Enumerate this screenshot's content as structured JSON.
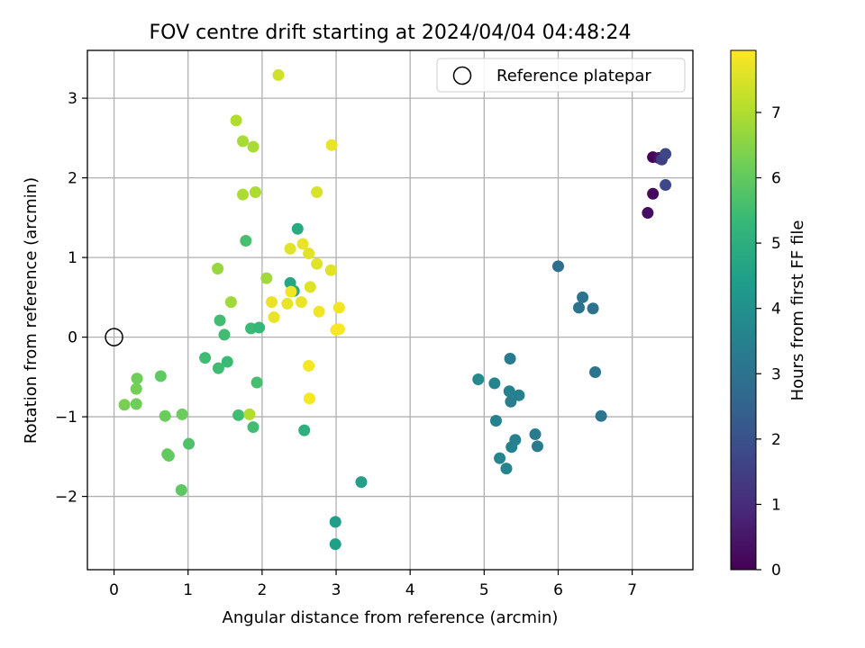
{
  "chart_data": {
    "type": "scatter",
    "title": "FOV centre drift starting at 2024/04/04 04:48:24",
    "xlabel": "Angular distance from reference (arcmin)",
    "ylabel": "Rotation from reference (arcmin)",
    "xlim": [
      -0.36,
      7.82
    ],
    "ylim": [
      -2.92,
      3.6
    ],
    "xticks": [
      "0",
      "1",
      "2",
      "3",
      "4",
      "5",
      "6",
      "7"
    ],
    "yticks": [
      "−2",
      "−1",
      "0",
      "1",
      "2",
      "3"
    ],
    "grid": true,
    "legend": {
      "location": "upper right",
      "label": "Reference platepar",
      "marker": "open-circle"
    },
    "reference_point": {
      "x": 0,
      "y": 0
    },
    "colorbar": {
      "label": "Hours from first FF file",
      "colormap": "viridis",
      "range": [
        0,
        7.95
      ],
      "ticks": [
        "0",
        "1",
        "2",
        "3",
        "4",
        "5",
        "6",
        "7"
      ]
    },
    "colormap_stops": [
      "#440154",
      "#482878",
      "#3e4989",
      "#31688e",
      "#26828e",
      "#1f9e89",
      "#35b779",
      "#6ece58",
      "#b5de2b",
      "#fde725"
    ],
    "points": [
      {
        "x": 7.28,
        "y": 2.26,
        "c": 0.05
      },
      {
        "x": 7.36,
        "y": 2.25,
        "c": 0.4
      },
      {
        "x": 7.4,
        "y": 2.23,
        "c": 1.5
      },
      {
        "x": 7.45,
        "y": 2.3,
        "c": 1.7
      },
      {
        "x": 7.45,
        "y": 1.91,
        "c": 1.75
      },
      {
        "x": 7.28,
        "y": 1.8,
        "c": 0.2
      },
      {
        "x": 7.21,
        "y": 1.56,
        "c": 0.3
      },
      {
        "x": 6.0,
        "y": 0.89,
        "c": 2.9
      },
      {
        "x": 6.33,
        "y": 0.5,
        "c": 3.0
      },
      {
        "x": 6.28,
        "y": 0.37,
        "c": 3.05
      },
      {
        "x": 6.47,
        "y": 0.36,
        "c": 3.0
      },
      {
        "x": 6.5,
        "y": -0.44,
        "c": 3.1
      },
      {
        "x": 6.58,
        "y": -0.99,
        "c": 3.1
      },
      {
        "x": 5.35,
        "y": -0.27,
        "c": 3.3
      },
      {
        "x": 4.92,
        "y": -0.53,
        "c": 3.8
      },
      {
        "x": 5.14,
        "y": -0.58,
        "c": 3.6
      },
      {
        "x": 5.34,
        "y": -0.68,
        "c": 3.5
      },
      {
        "x": 5.47,
        "y": -0.73,
        "c": 3.5
      },
      {
        "x": 5.36,
        "y": -0.81,
        "c": 3.4
      },
      {
        "x": 5.16,
        "y": -1.05,
        "c": 3.5
      },
      {
        "x": 5.69,
        "y": -1.22,
        "c": 3.3
      },
      {
        "x": 5.42,
        "y": -1.29,
        "c": 3.45
      },
      {
        "x": 5.72,
        "y": -1.37,
        "c": 3.3
      },
      {
        "x": 5.37,
        "y": -1.38,
        "c": 3.5
      },
      {
        "x": 5.21,
        "y": -1.52,
        "c": 3.6
      },
      {
        "x": 5.3,
        "y": -1.65,
        "c": 3.6
      },
      {
        "x": 3.34,
        "y": -1.82,
        "c": 4.5
      },
      {
        "x": 2.99,
        "y": -2.32,
        "c": 4.45
      },
      {
        "x": 2.99,
        "y": -2.6,
        "c": 4.5
      },
      {
        "x": 2.48,
        "y": 1.36,
        "c": 4.85
      },
      {
        "x": 2.38,
        "y": 0.68,
        "c": 4.7
      },
      {
        "x": 2.43,
        "y": 0.58,
        "c": 4.9
      },
      {
        "x": 2.57,
        "y": -1.17,
        "c": 5.0
      },
      {
        "x": 1.78,
        "y": 1.21,
        "c": 5.6
      },
      {
        "x": 1.43,
        "y": 0.21,
        "c": 5.5
      },
      {
        "x": 1.49,
        "y": 0.03,
        "c": 5.5
      },
      {
        "x": 1.85,
        "y": 0.11,
        "c": 5.4
      },
      {
        "x": 1.96,
        "y": 0.12,
        "c": 5.3
      },
      {
        "x": 1.23,
        "y": -0.26,
        "c": 5.45
      },
      {
        "x": 1.41,
        "y": -0.39,
        "c": 5.45
      },
      {
        "x": 1.53,
        "y": -0.31,
        "c": 5.4
      },
      {
        "x": 1.93,
        "y": -0.57,
        "c": 5.55
      },
      {
        "x": 1.68,
        "y": -0.98,
        "c": 5.5
      },
      {
        "x": 1.88,
        "y": -1.13,
        "c": 5.5
      },
      {
        "x": 1.01,
        "y": -1.34,
        "c": 5.7
      },
      {
        "x": 0.63,
        "y": -0.49,
        "c": 5.95
      },
      {
        "x": 0.31,
        "y": -0.52,
        "c": 6.2
      },
      {
        "x": 0.3,
        "y": -0.65,
        "c": 6.25
      },
      {
        "x": 0.14,
        "y": -0.85,
        "c": 6.3
      },
      {
        "x": 0.3,
        "y": -0.84,
        "c": 6.2
      },
      {
        "x": 0.69,
        "y": -0.99,
        "c": 6.1
      },
      {
        "x": 0.92,
        "y": -0.97,
        "c": 6.1
      },
      {
        "x": 0.72,
        "y": -1.47,
        "c": 6.0
      },
      {
        "x": 0.74,
        "y": -1.49,
        "c": 6.0
      },
      {
        "x": 0.91,
        "y": -1.92,
        "c": 5.9
      },
      {
        "x": 1.4,
        "y": 0.86,
        "c": 6.7
      },
      {
        "x": 1.58,
        "y": 0.44,
        "c": 6.8
      },
      {
        "x": 2.06,
        "y": 0.74,
        "c": 6.8
      },
      {
        "x": 1.65,
        "y": 2.72,
        "c": 7.0
      },
      {
        "x": 1.74,
        "y": 2.46,
        "c": 6.9
      },
      {
        "x": 1.88,
        "y": 2.39,
        "c": 6.9
      },
      {
        "x": 1.74,
        "y": 1.79,
        "c": 6.95
      },
      {
        "x": 1.91,
        "y": 1.82,
        "c": 6.95
      },
      {
        "x": 2.22,
        "y": 3.29,
        "c": 7.4
      },
      {
        "x": 1.83,
        "y": -0.97,
        "c": 7.0
      },
      {
        "x": 2.94,
        "y": 2.41,
        "c": 7.7
      },
      {
        "x": 2.74,
        "y": 1.82,
        "c": 7.5
      },
      {
        "x": 2.38,
        "y": 1.11,
        "c": 7.6
      },
      {
        "x": 2.55,
        "y": 1.17,
        "c": 7.7
      },
      {
        "x": 2.63,
        "y": 1.05,
        "c": 7.6
      },
      {
        "x": 2.74,
        "y": 0.92,
        "c": 7.6
      },
      {
        "x": 2.93,
        "y": 0.84,
        "c": 7.6
      },
      {
        "x": 2.65,
        "y": 0.63,
        "c": 7.55
      },
      {
        "x": 2.39,
        "y": 0.57,
        "c": 7.8
      },
      {
        "x": 2.13,
        "y": 0.44,
        "c": 7.7
      },
      {
        "x": 2.34,
        "y": 0.42,
        "c": 7.7
      },
      {
        "x": 2.53,
        "y": 0.44,
        "c": 7.7
      },
      {
        "x": 2.16,
        "y": 0.25,
        "c": 7.7
      },
      {
        "x": 2.77,
        "y": 0.32,
        "c": 7.8
      },
      {
        "x": 3.04,
        "y": 0.37,
        "c": 7.8
      },
      {
        "x": 3.0,
        "y": 0.09,
        "c": 7.9
      },
      {
        "x": 3.04,
        "y": 0.1,
        "c": 7.9
      },
      {
        "x": 2.63,
        "y": -0.36,
        "c": 7.85
      },
      {
        "x": 2.64,
        "y": -0.77,
        "c": 7.85
      }
    ]
  }
}
